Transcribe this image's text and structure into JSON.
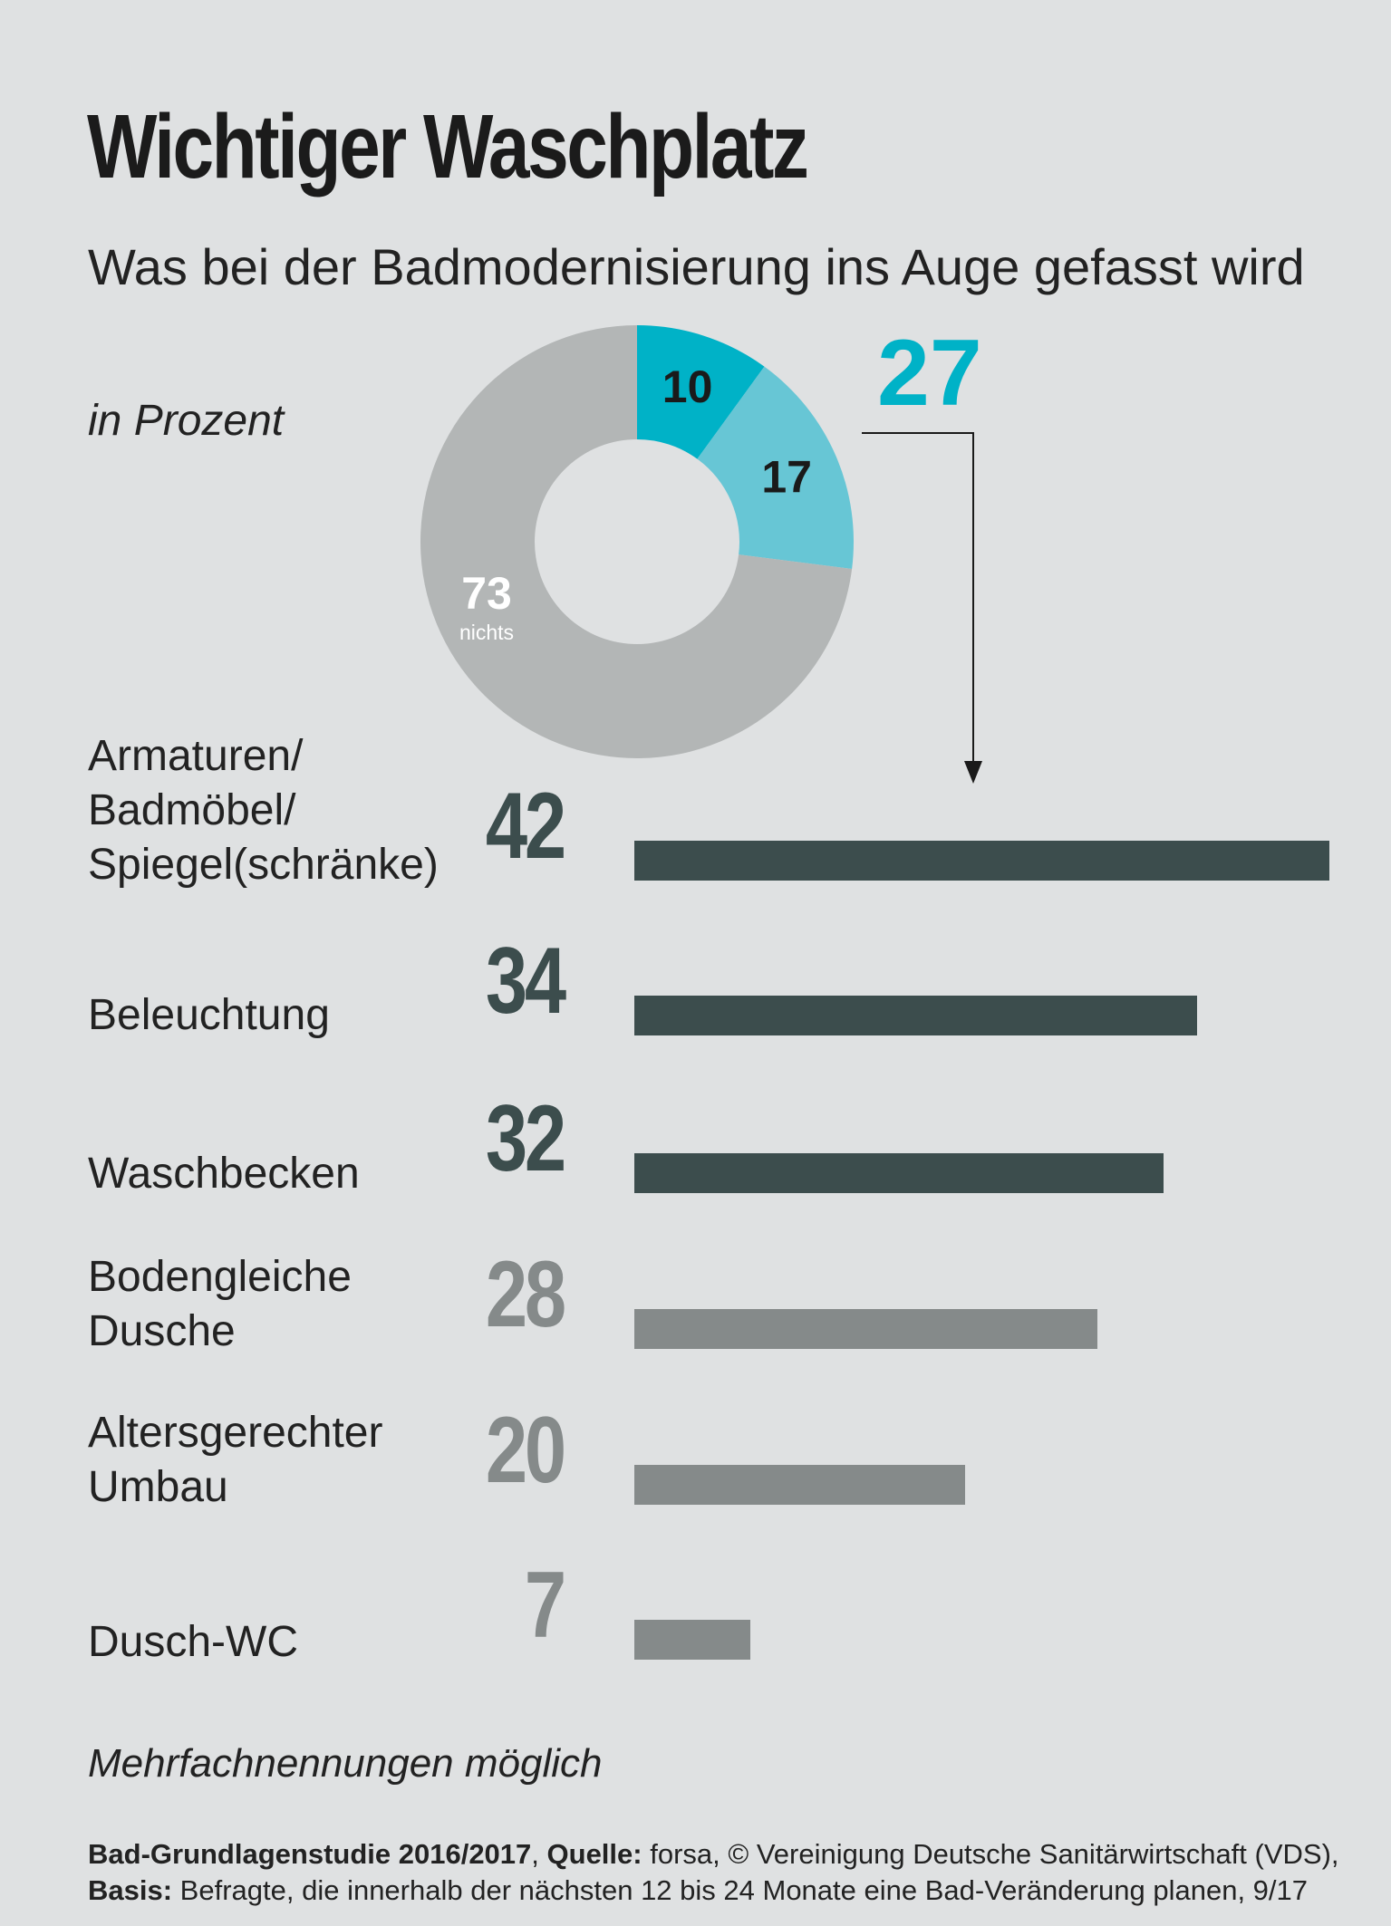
{
  "header": {
    "title": "Wichtiger Waschplatz",
    "subtitle": "Was bei der Badmodernisierung ins Auge gefasst wird",
    "unit": "in Prozent"
  },
  "colors": {
    "teal_dark": "#00b2c7",
    "teal_light": "#67c6d5",
    "gray_donut": "#b3b6b6",
    "bar_dark": "#3c4d4d",
    "bar_gray": "#858a8a",
    "value_dark": "#3c4d4d",
    "value_gray": "#858a8a",
    "background": "#dfe1e2"
  },
  "footer": {
    "note": "Mehrfachnennungen möglich",
    "source_label": "Bad-Grundlagenstudie 2016/2017",
    "source_key": "Quelle:",
    "source_text": "forsa, © Vereinigung Deutsche Sanitärwirtschaft (VDS),",
    "basis_key": "Basis:",
    "basis_text": "Befragte, die innerhalb der nächsten 12 bis 24 Monate eine Bad-Veränderung planen, 9/17"
  },
  "chart_data": [
    {
      "type": "pie",
      "title": "",
      "slices": [
        {
          "label": "10",
          "value": 10,
          "color": "#00b2c7"
        },
        {
          "label": "17",
          "value": 17,
          "color": "#67c6d5"
        },
        {
          "label": "73",
          "sublabel": "nichts",
          "value": 73,
          "color": "#b3b6b6"
        }
      ],
      "callout": "27"
    },
    {
      "type": "bar",
      "orientation": "horizontal",
      "categories": [
        "Armaturen/\nBadmöbel/\nSpiegel(schränke)",
        "Beleuchtung",
        "Waschbecken",
        "Bodengleiche\nDusche",
        "Altersgerechter\nUmbau",
        "Dusch-WC"
      ],
      "values": [
        42,
        34,
        32,
        28,
        20,
        7
      ],
      "value_labels": [
        "42",
        "34",
        "32",
        "28",
        "20",
        "7"
      ],
      "highlight": [
        true,
        true,
        true,
        false,
        false,
        false
      ],
      "xlim": [
        0,
        42
      ]
    }
  ]
}
